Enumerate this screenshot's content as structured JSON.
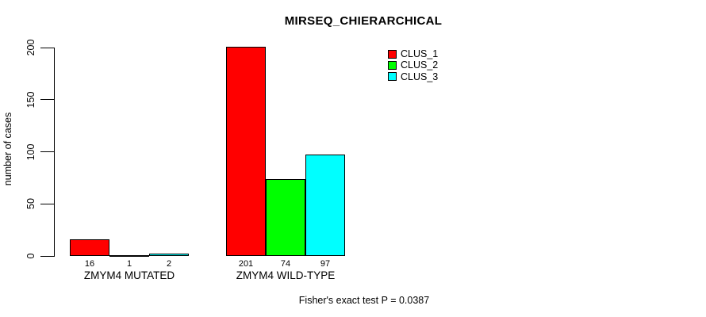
{
  "chart_data": {
    "type": "bar",
    "title": "MIRSEQ_CHIERARCHICAL",
    "xlabel": "",
    "ylabel": "number of cases",
    "categories": [
      "ZMYM4 MUTATED",
      "ZMYM4 WILD-TYPE"
    ],
    "series": [
      {
        "name": "CLUS_1",
        "color": "#ff0000",
        "values": [
          16,
          201
        ]
      },
      {
        "name": "CLUS_2",
        "color": "#00ff00",
        "values": [
          1,
          74
        ]
      },
      {
        "name": "CLUS_3",
        "color": "#00ffff",
        "values": [
          2,
          97
        ]
      }
    ],
    "ylim": [
      0,
      200
    ],
    "yticks": [
      0,
      50,
      100,
      150,
      200
    ],
    "bar_value_labels": [
      [
        16,
        1,
        2
      ],
      [
        201,
        74,
        97
      ]
    ],
    "grid": false,
    "legend_position": "top-right",
    "annotation": "Fisher's exact test P = 0.0387",
    "bar_border_color": "#000000",
    "background_color": "#ffffff"
  }
}
